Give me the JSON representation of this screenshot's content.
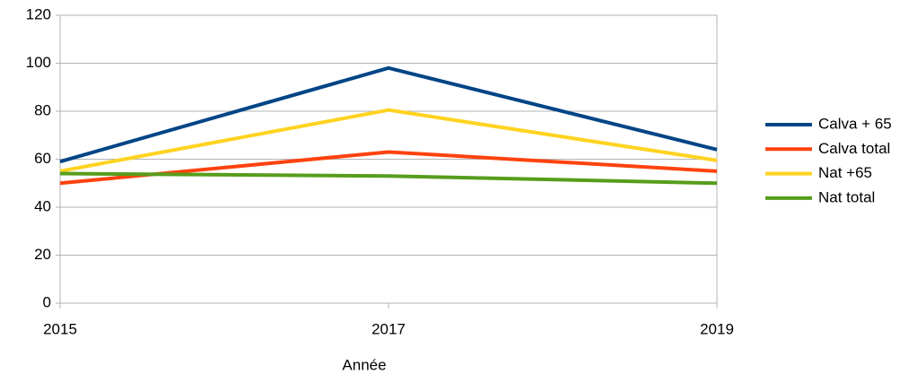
{
  "chart_data": {
    "type": "line",
    "x_label": "Année",
    "x": [
      2015,
      2017,
      2019
    ],
    "xlim": [
      2015,
      2019
    ],
    "xticks": [
      2015,
      2017,
      2019
    ],
    "ylim": [
      0,
      120
    ],
    "yticks": [
      0,
      20,
      40,
      60,
      80,
      100,
      120
    ],
    "grid": true,
    "legend": "right",
    "series": [
      {
        "name": "Calva + 65",
        "color": "#004586",
        "values": [
          59,
          98,
          64
        ]
      },
      {
        "name": "Calva total",
        "color": "#ff420e",
        "values": [
          50,
          63,
          55
        ]
      },
      {
        "name": "Nat +65",
        "color": "#ffd320",
        "values": [
          55,
          80.5,
          59.5
        ]
      },
      {
        "name": "Nat total",
        "color": "#579d1c",
        "values": [
          54,
          53,
          50
        ]
      }
    ]
  }
}
